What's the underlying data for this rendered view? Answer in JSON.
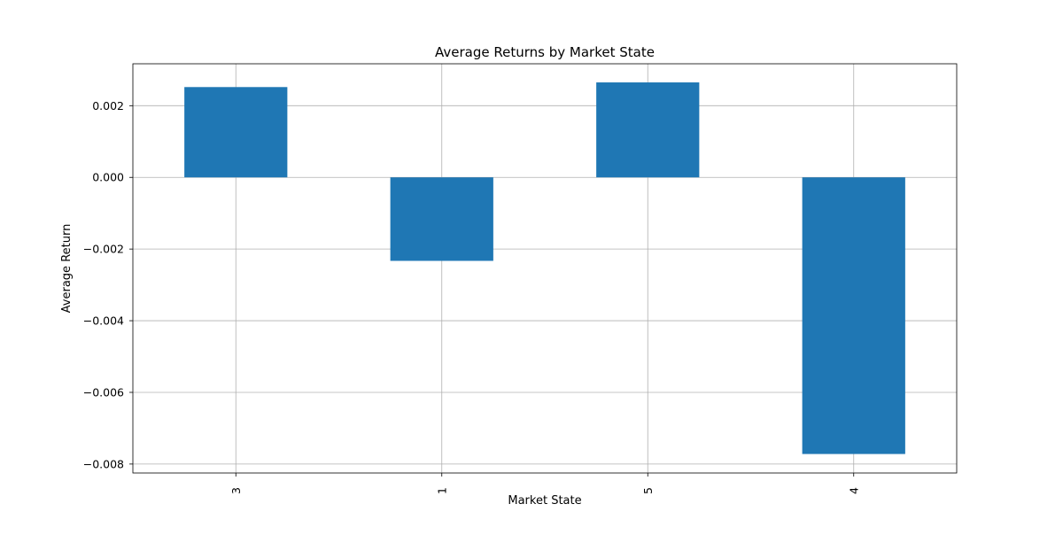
{
  "chart_data": {
    "type": "bar",
    "title": "Average Returns by Market State",
    "xlabel": "Market State",
    "ylabel": "Average Return",
    "categories": [
      "3",
      "1",
      "5",
      "4"
    ],
    "values": [
      0.00252,
      -0.00233,
      0.00265,
      -0.00772
    ],
    "ylim": [
      -0.00825,
      0.00317
    ],
    "yticks": [
      0.002,
      0.0,
      -0.002,
      -0.004,
      -0.006,
      -0.008
    ],
    "ytick_labels": [
      "0.002",
      "0.000",
      "−0.002",
      "−0.004",
      "−0.006",
      "−0.008"
    ],
    "bar_color": "#1f77b4",
    "grid": true,
    "xtick_rotation": "vertical",
    "legend": "none"
  }
}
